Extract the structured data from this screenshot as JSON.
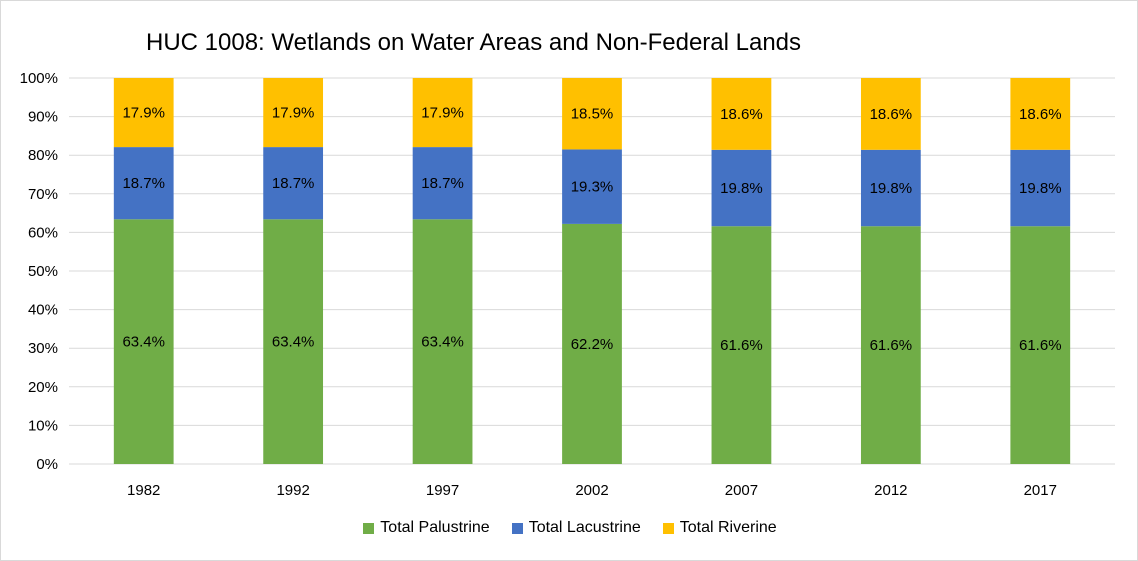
{
  "chart_data": {
    "type": "bar",
    "stacked": true,
    "title": "HUC 1008: Wetlands on Water Areas and Non-Federal Lands",
    "xlabel": "",
    "ylabel": "",
    "ylim": [
      0,
      100
    ],
    "yticks": [
      "0%",
      "10%",
      "20%",
      "30%",
      "40%",
      "50%",
      "60%",
      "70%",
      "80%",
      "90%",
      "100%"
    ],
    "categories": [
      "1982",
      "1992",
      "1997",
      "2002",
      "2007",
      "2012",
      "2017"
    ],
    "series": [
      {
        "name": "Total Palustrine",
        "color": "#70ad47",
        "values": [
          63.4,
          63.4,
          63.4,
          62.2,
          61.6,
          61.6,
          61.6
        ],
        "labels": [
          "63.4%",
          "63.4%",
          "63.4%",
          "62.2%",
          "61.6%",
          "61.6%",
          "61.6%"
        ]
      },
      {
        "name": "Total Lacustrine",
        "color": "#4472c4",
        "values": [
          18.7,
          18.7,
          18.7,
          19.3,
          19.8,
          19.8,
          19.8
        ],
        "labels": [
          "18.7%",
          "18.7%",
          "18.7%",
          "19.3%",
          "19.8%",
          "19.8%",
          "19.8%"
        ]
      },
      {
        "name": "Total Riverine",
        "color": "#ffc000",
        "values": [
          17.9,
          17.9,
          17.9,
          18.5,
          18.6,
          18.6,
          18.6
        ],
        "labels": [
          "17.9%",
          "17.9%",
          "17.9%",
          "18.5%",
          "18.6%",
          "18.6%",
          "18.6%"
        ]
      }
    ],
    "grid": true,
    "legend_position": "bottom"
  }
}
